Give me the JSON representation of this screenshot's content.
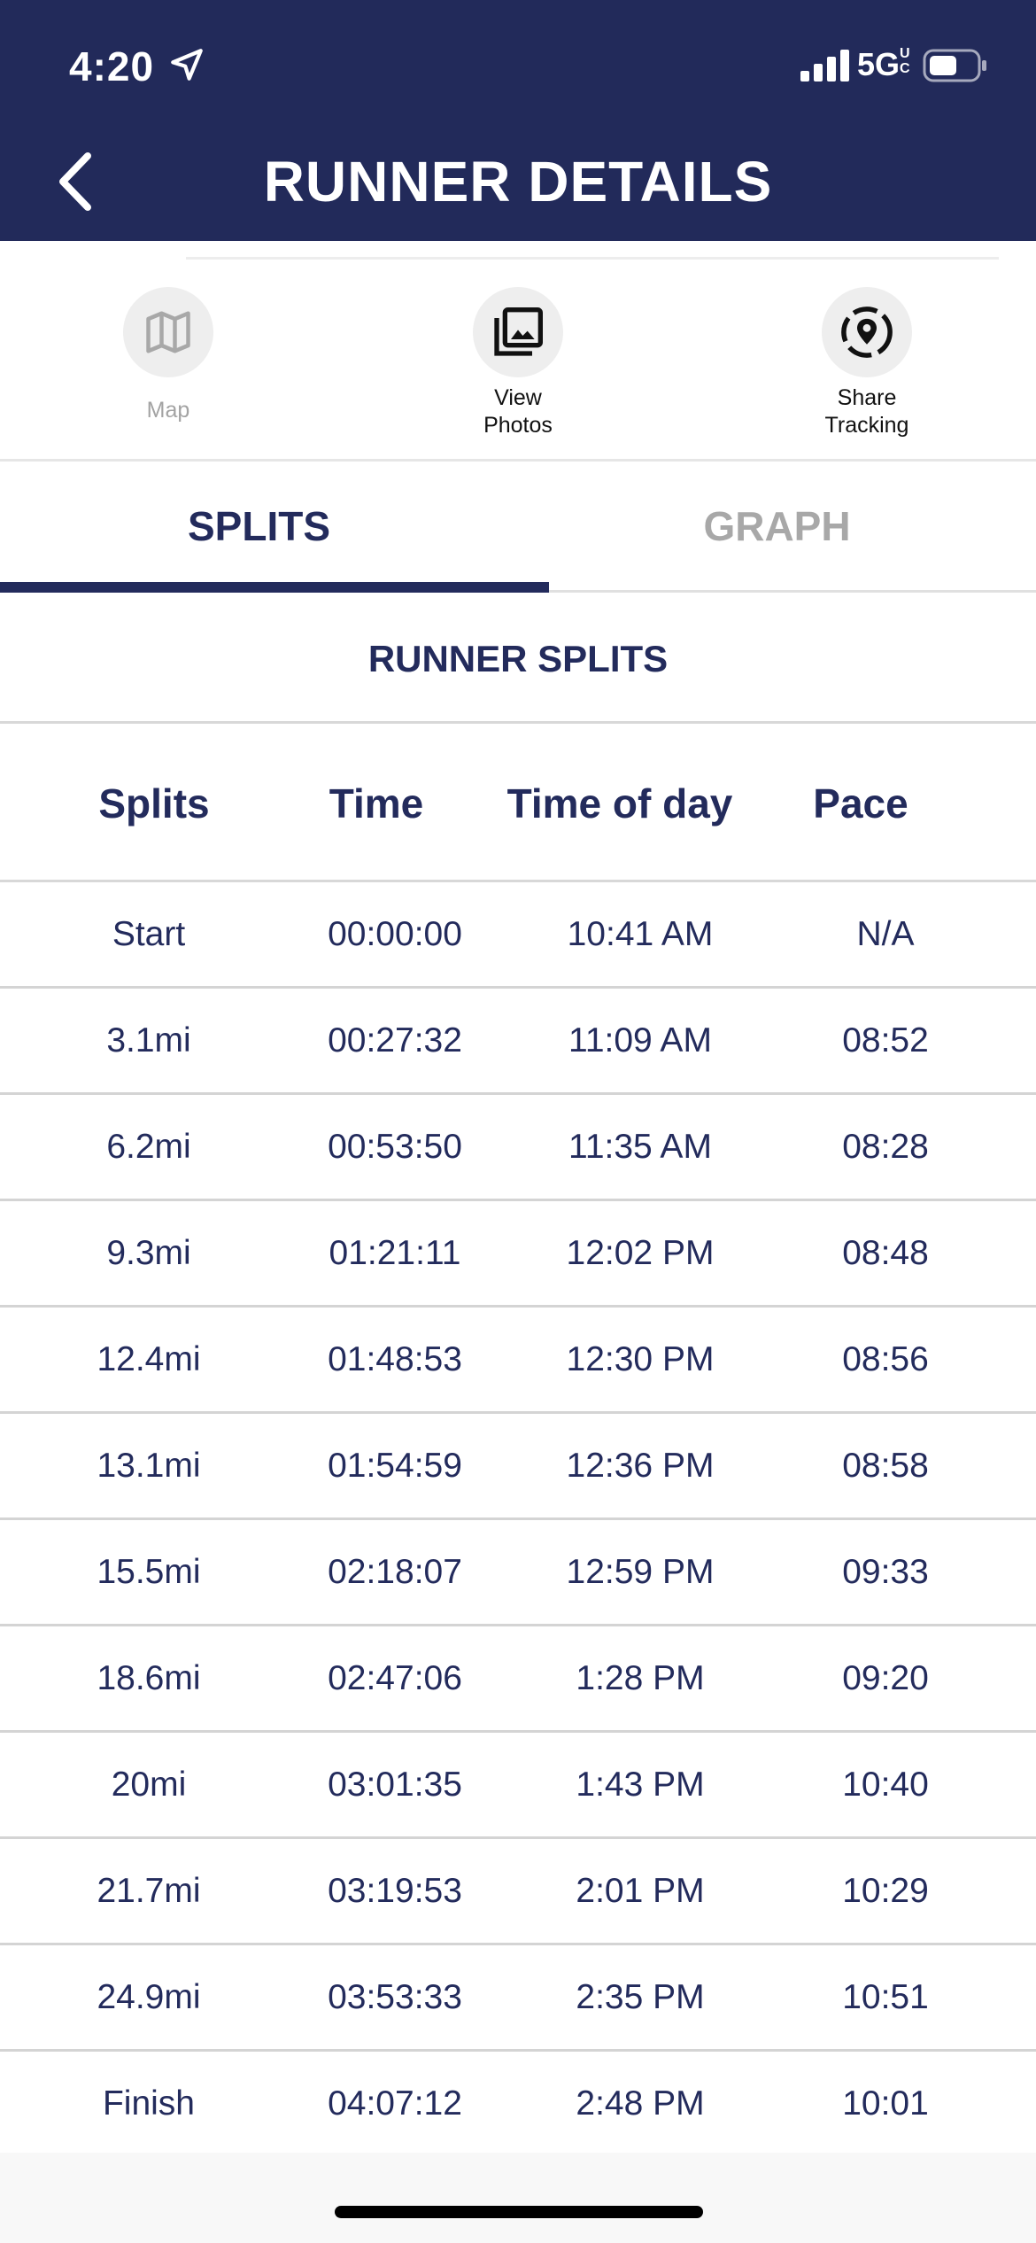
{
  "status_bar": {
    "time": "4:20",
    "network": "5G",
    "network_suffix": "UC"
  },
  "header": {
    "title": "RUNNER DETAILS"
  },
  "actions": [
    {
      "label": "Map",
      "icon": "map-icon",
      "enabled": false
    },
    {
      "label": "View\nPhotos",
      "icon": "photo-library-icon",
      "enabled": true
    },
    {
      "label": "Share\nTracking",
      "icon": "location-share-icon",
      "enabled": true
    }
  ],
  "tabs": [
    {
      "label": "SPLITS",
      "active": true
    },
    {
      "label": "GRAPH",
      "active": false
    }
  ],
  "section_title": "RUNNER SPLITS",
  "table": {
    "columns": [
      "Splits",
      "Time",
      "Time of day",
      "Pace"
    ],
    "rows": [
      [
        "Start",
        "00:00:00",
        "10:41 AM",
        "N/A"
      ],
      [
        "3.1mi",
        "00:27:32",
        "11:09 AM",
        "08:52"
      ],
      [
        "6.2mi",
        "00:53:50",
        "11:35 AM",
        "08:28"
      ],
      [
        "9.3mi",
        "01:21:11",
        "12:02 PM",
        "08:48"
      ],
      [
        "12.4mi",
        "01:48:53",
        "12:30 PM",
        "08:56"
      ],
      [
        "13.1mi",
        "01:54:59",
        "12:36 PM",
        "08:58"
      ],
      [
        "15.5mi",
        "02:18:07",
        "12:59 PM",
        "09:33"
      ],
      [
        "18.6mi",
        "02:47:06",
        "1:28 PM",
        "09:20"
      ],
      [
        "20mi",
        "03:01:35",
        "1:43 PM",
        "10:40"
      ],
      [
        "21.7mi",
        "03:19:53",
        "2:01 PM",
        "10:29"
      ],
      [
        "24.9mi",
        "03:53:33",
        "2:35 PM",
        "10:51"
      ],
      [
        "Finish",
        "04:07:12",
        "2:48 PM",
        "10:01"
      ]
    ]
  },
  "colors": {
    "brand_navy": "#222a5a",
    "text_navy": "#232b5c",
    "muted": "#a8a8a8"
  }
}
